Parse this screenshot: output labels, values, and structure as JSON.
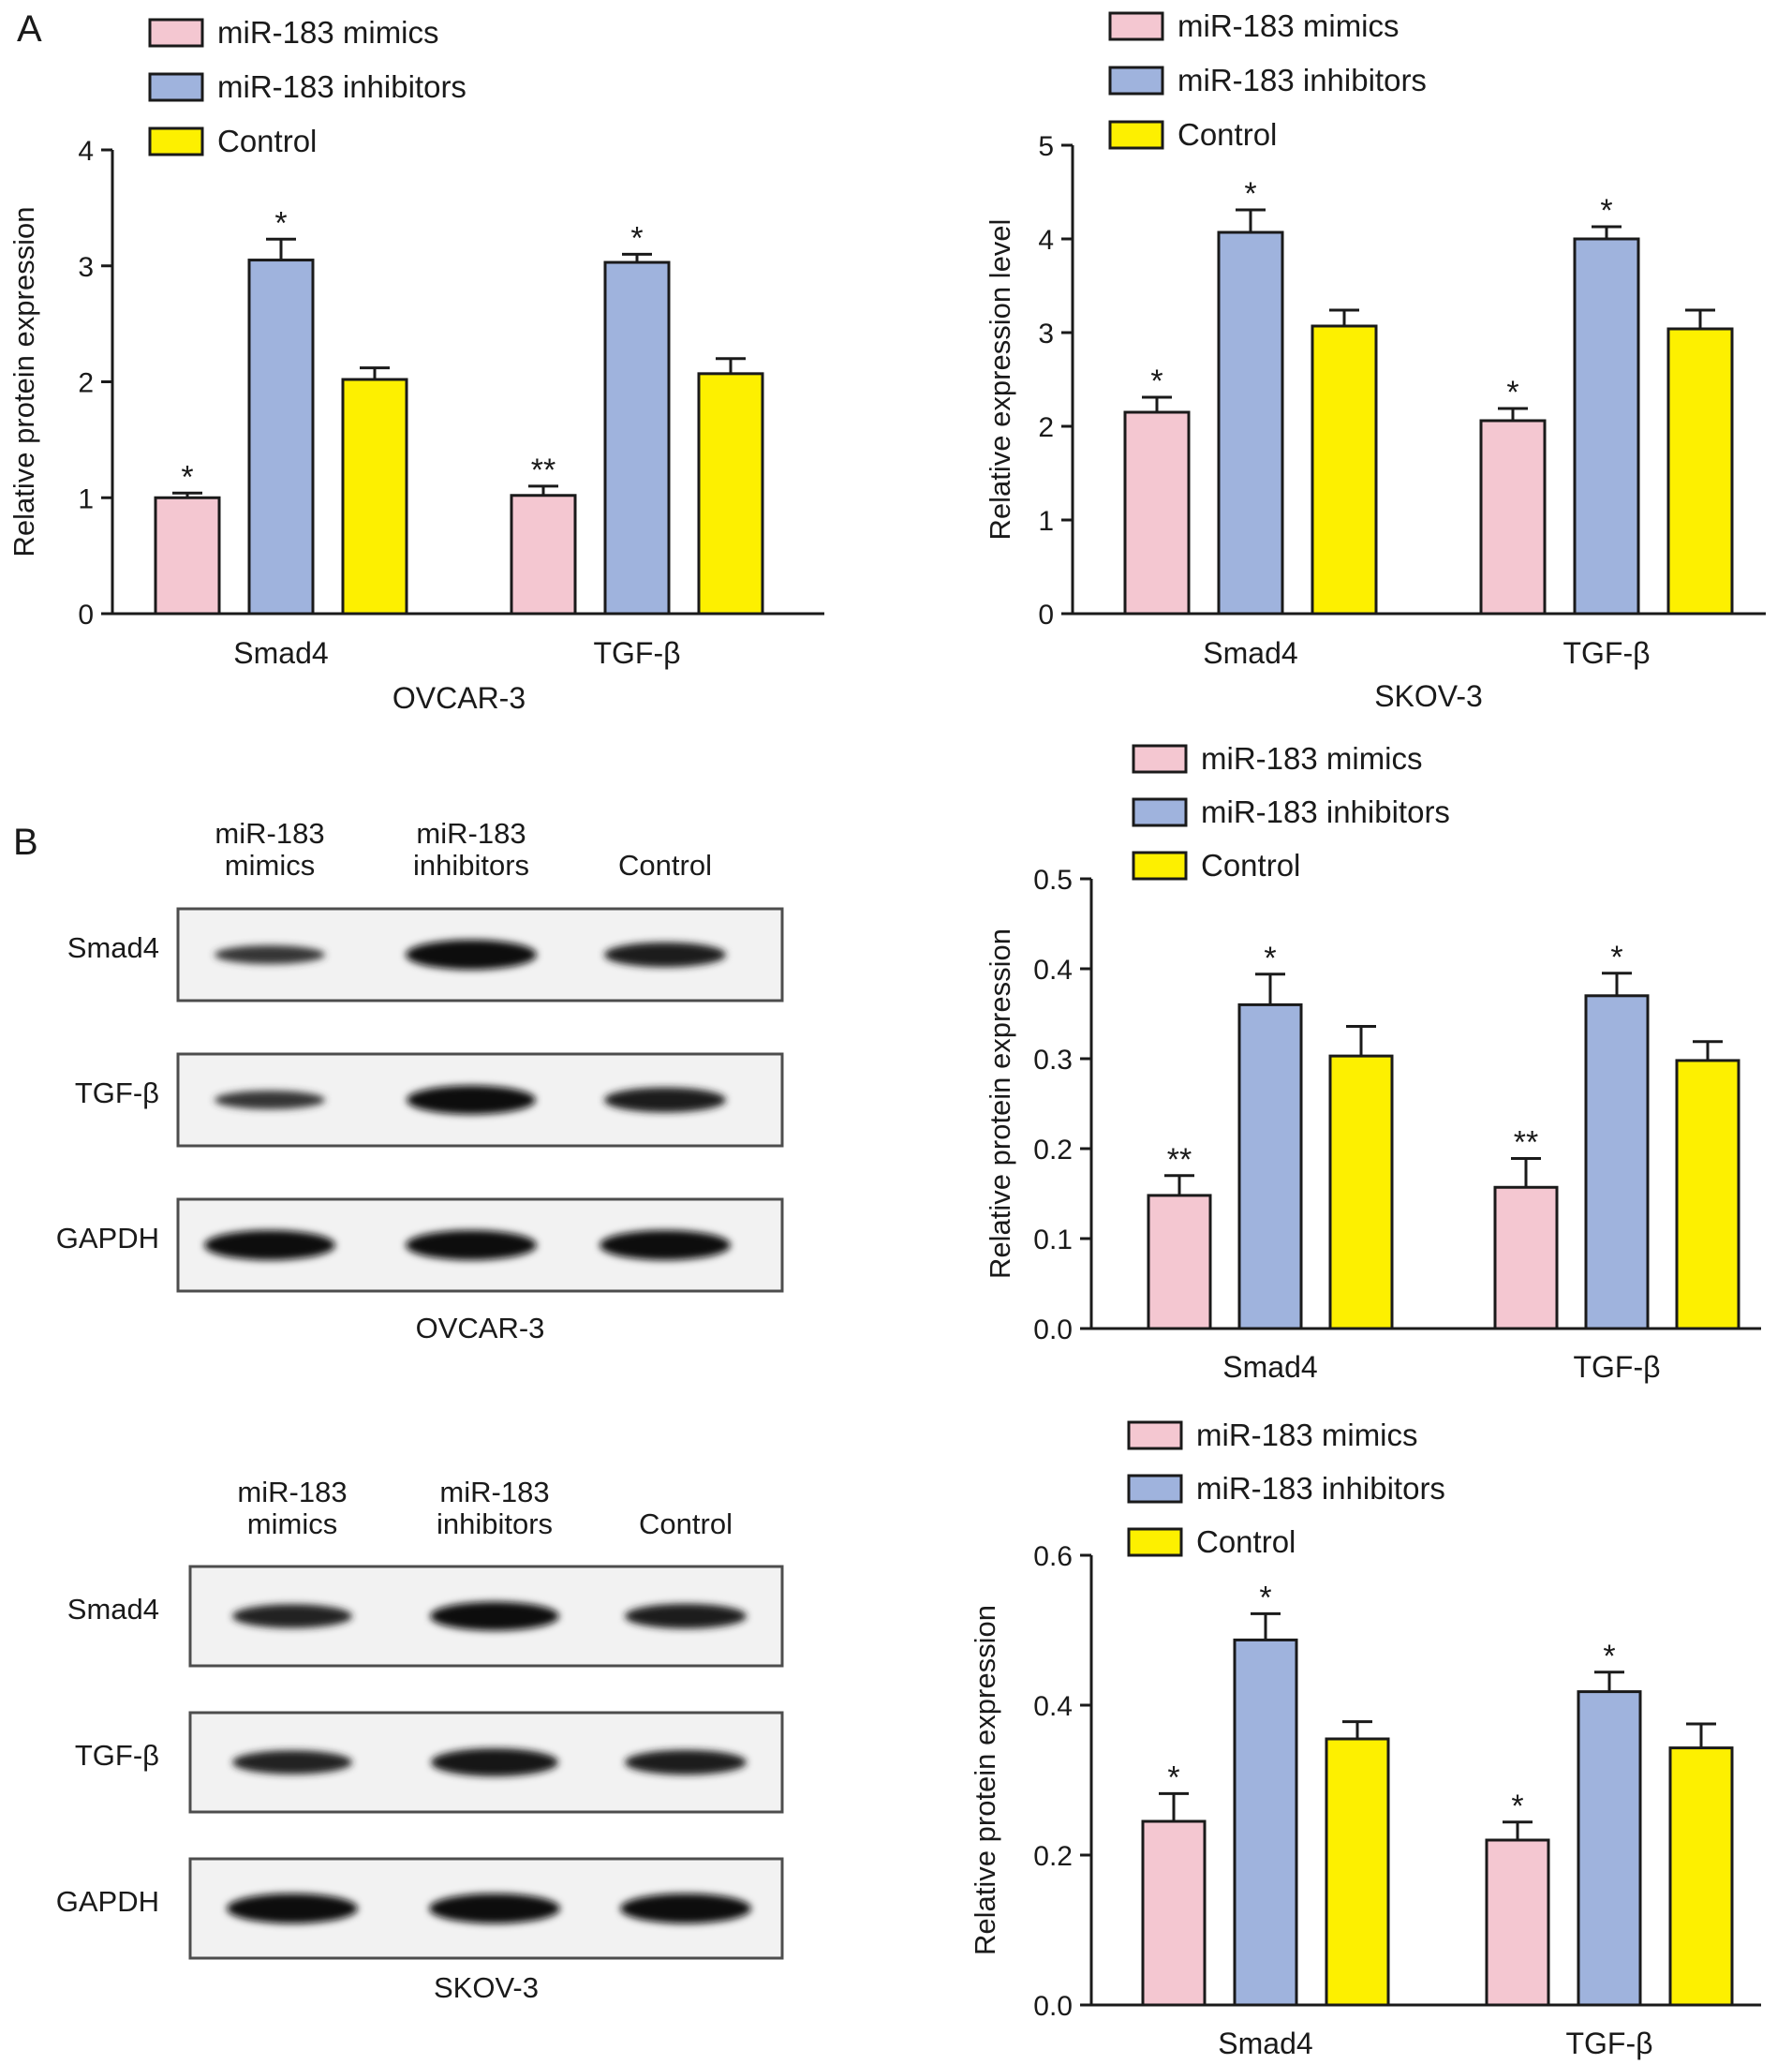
{
  "panels": [
    {
      "id": "A",
      "label": "A"
    },
    {
      "id": "B",
      "label": "B"
    }
  ],
  "colors": {
    "mimics": "#f4c7d1",
    "inhibitors": "#9fb3dd",
    "control": "#fdf000",
    "axis": "#1a1a1a"
  },
  "chart_data": [
    {
      "type": "bar",
      "panel": "A",
      "cell_line": "OVCAR-3",
      "xlabel": "OVCAR-3",
      "ylabel": "Relative protein expression",
      "categories": [
        "Smad4",
        "TGF-β"
      ],
      "ylim": [
        0,
        4
      ],
      "yticks": [
        "0",
        "1",
        "2",
        "3",
        "4"
      ],
      "legend": [
        "miR-183 mimics",
        "miR-183 inhibitors",
        "Control"
      ],
      "legend_position": "top-left",
      "series": [
        {
          "name": "miR-183 mimics",
          "values": [
            1.0,
            1.02
          ],
          "errors": [
            0.04,
            0.08
          ],
          "stars": [
            "*",
            "**"
          ]
        },
        {
          "name": "miR-183 inhibitors",
          "values": [
            3.05,
            3.03
          ],
          "errors": [
            0.18,
            0.07
          ],
          "stars": [
            "*",
            "*"
          ]
        },
        {
          "name": "Control",
          "values": [
            2.02,
            2.07
          ],
          "errors": [
            0.1,
            0.13
          ],
          "stars": [
            "",
            ""
          ]
        }
      ]
    },
    {
      "type": "bar",
      "panel": "A",
      "cell_line": "SKOV-3",
      "xlabel": "SKOV-3",
      "ylabel": "Relative expression level",
      "categories": [
        "Smad4",
        "TGF-β"
      ],
      "ylim": [
        0,
        5
      ],
      "yticks": [
        "0",
        "1",
        "2",
        "3",
        "4",
        "5"
      ],
      "legend": [
        "miR-183 mimics",
        "miR-183 inhibitors",
        "Control"
      ],
      "legend_position": "top-left",
      "series": [
        {
          "name": "miR-183 mimics",
          "values": [
            2.15,
            2.06
          ],
          "errors": [
            0.16,
            0.13
          ],
          "stars": [
            "*",
            "*"
          ]
        },
        {
          "name": "miR-183 inhibitors",
          "values": [
            4.07,
            4.0
          ],
          "errors": [
            0.24,
            0.13
          ],
          "stars": [
            "*",
            "*"
          ]
        },
        {
          "name": "Control",
          "values": [
            3.07,
            3.04
          ],
          "errors": [
            0.17,
            0.2
          ],
          "stars": [
            "",
            ""
          ]
        }
      ]
    },
    {
      "type": "bar",
      "panel": "B",
      "cell_line": "OVCAR-3",
      "xlabel": "",
      "ylabel": "Relative protein expression",
      "categories": [
        "Smad4",
        "TGF-β"
      ],
      "ylim": [
        0,
        0.5
      ],
      "yticks": [
        "0.0",
        "0.1",
        "0.2",
        "0.3",
        "0.4",
        "0.5"
      ],
      "legend": [
        "miR-183 mimics",
        "miR-183 inhibitors",
        "Control"
      ],
      "legend_position": "top-left",
      "series": [
        {
          "name": "miR-183 mimics",
          "values": [
            0.148,
            0.157
          ],
          "errors": [
            0.022,
            0.032
          ],
          "stars": [
            "**",
            "**"
          ]
        },
        {
          "name": "miR-183 inhibitors",
          "values": [
            0.36,
            0.37
          ],
          "errors": [
            0.034,
            0.025
          ],
          "stars": [
            "*",
            "*"
          ]
        },
        {
          "name": "Control",
          "values": [
            0.303,
            0.298
          ],
          "errors": [
            0.033,
            0.021
          ],
          "stars": [
            "",
            ""
          ]
        }
      ]
    },
    {
      "type": "bar",
      "panel": "B",
      "cell_line": "SKOV-3",
      "xlabel": "",
      "ylabel": "Relative protein expression",
      "categories": [
        "Smad4",
        "TGF-β"
      ],
      "ylim": [
        0,
        0.6
      ],
      "yticks": [
        "0.0",
        "0.2",
        "0.4",
        "0.6"
      ],
      "legend": [
        "miR-183 mimics",
        "miR-183 inhibitors",
        "Control"
      ],
      "legend_position": "top-left",
      "series": [
        {
          "name": "miR-183 mimics",
          "values": [
            0.245,
            0.22
          ],
          "errors": [
            0.037,
            0.024
          ],
          "stars": [
            "*",
            "*"
          ]
        },
        {
          "name": "miR-183 inhibitors",
          "values": [
            0.487,
            0.418
          ],
          "errors": [
            0.035,
            0.026
          ],
          "stars": [
            "*",
            "*"
          ]
        },
        {
          "name": "Control",
          "values": [
            0.355,
            0.343
          ],
          "errors": [
            0.023,
            0.032
          ],
          "stars": [
            "",
            ""
          ]
        }
      ]
    }
  ],
  "blots": [
    {
      "caption": "OVCAR-3",
      "lanes": [
        "miR-183\nmimics",
        "miR-183\ninhibitors",
        "Control"
      ],
      "rows": [
        {
          "label": "Smad4",
          "intensity": [
            0.45,
            1.0,
            0.75
          ]
        },
        {
          "label": "TGF-β",
          "intensity": [
            0.45,
            0.95,
            0.75
          ]
        },
        {
          "label": "GAPDH",
          "intensity": [
            1.0,
            1.0,
            1.0
          ]
        }
      ]
    },
    {
      "caption": "SKOV-3",
      "lanes": [
        "miR-183\nmimics",
        "miR-183\ninhibitors",
        "Control"
      ],
      "rows": [
        {
          "label": "Smad4",
          "intensity": [
            0.7,
            0.95,
            0.75
          ]
        },
        {
          "label": "TGF-β",
          "intensity": [
            0.7,
            0.9,
            0.75
          ]
        },
        {
          "label": "GAPDH",
          "intensity": [
            1.0,
            1.0,
            1.0
          ]
        }
      ]
    }
  ]
}
